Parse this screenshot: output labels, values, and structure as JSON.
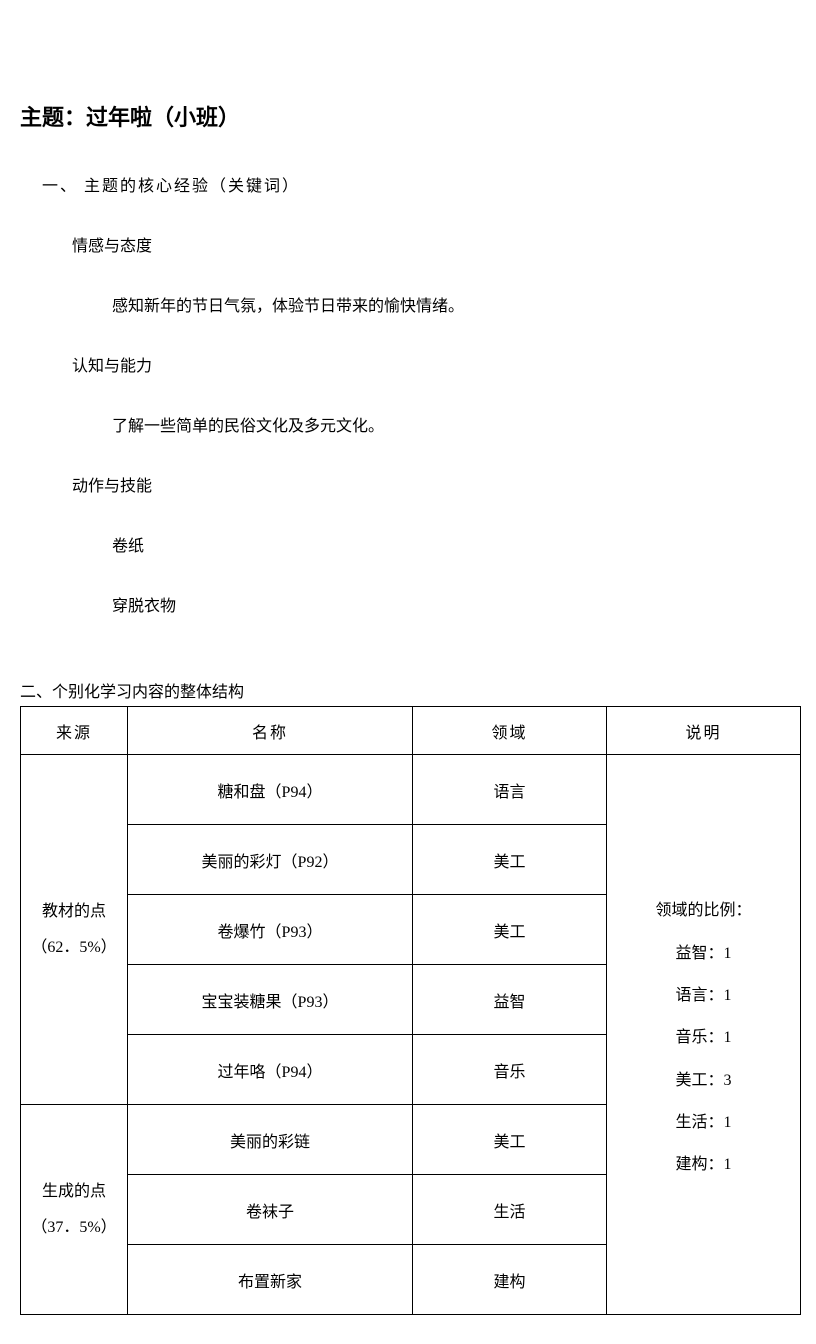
{
  "title": "主题：过年啦（小班）",
  "section1": {
    "heading": "一、 主题的核心经验（关键词）",
    "blocks": [
      {
        "sub": "情感与态度",
        "lines": [
          "感知新年的节日气氛，体验节日带来的愉快情绪。"
        ]
      },
      {
        "sub": "认知与能力",
        "lines": [
          "了解一些简单的民俗文化及多元文化。"
        ]
      },
      {
        "sub": "动作与技能",
        "lines": [
          "卷纸",
          "穿脱衣物"
        ]
      }
    ]
  },
  "section2": {
    "heading": "二、个别化学习内容的整体结构",
    "columns": [
      "来源",
      "名称",
      "领域",
      "说明"
    ],
    "sources": [
      {
        "label_line1": "教材的点",
        "label_line2": "（62．5%）",
        "rows": [
          {
            "name": "糖和盘（P94）",
            "domain": "语言"
          },
          {
            "name": "美丽的彩灯（P92）",
            "domain": "美工"
          },
          {
            "name": "卷爆竹（P93）",
            "domain": "美工"
          },
          {
            "name": "宝宝装糖果（P93）",
            "domain": "益智"
          },
          {
            "name": "过年咯（P94）",
            "domain": "音乐"
          }
        ]
      },
      {
        "label_line1": "生成的点",
        "label_line2": "（37．5%）",
        "rows": [
          {
            "name": "美丽的彩链",
            "domain": "美工"
          },
          {
            "name": "卷袜子",
            "domain": "生活"
          },
          {
            "name": "布置新家",
            "domain": "建构"
          }
        ]
      }
    ],
    "explain": {
      "head": "领域的比例：",
      "items": [
        "益智：1",
        "语言：1",
        "音乐：1",
        "美工：3",
        "生活：1",
        "建构：1"
      ]
    }
  }
}
